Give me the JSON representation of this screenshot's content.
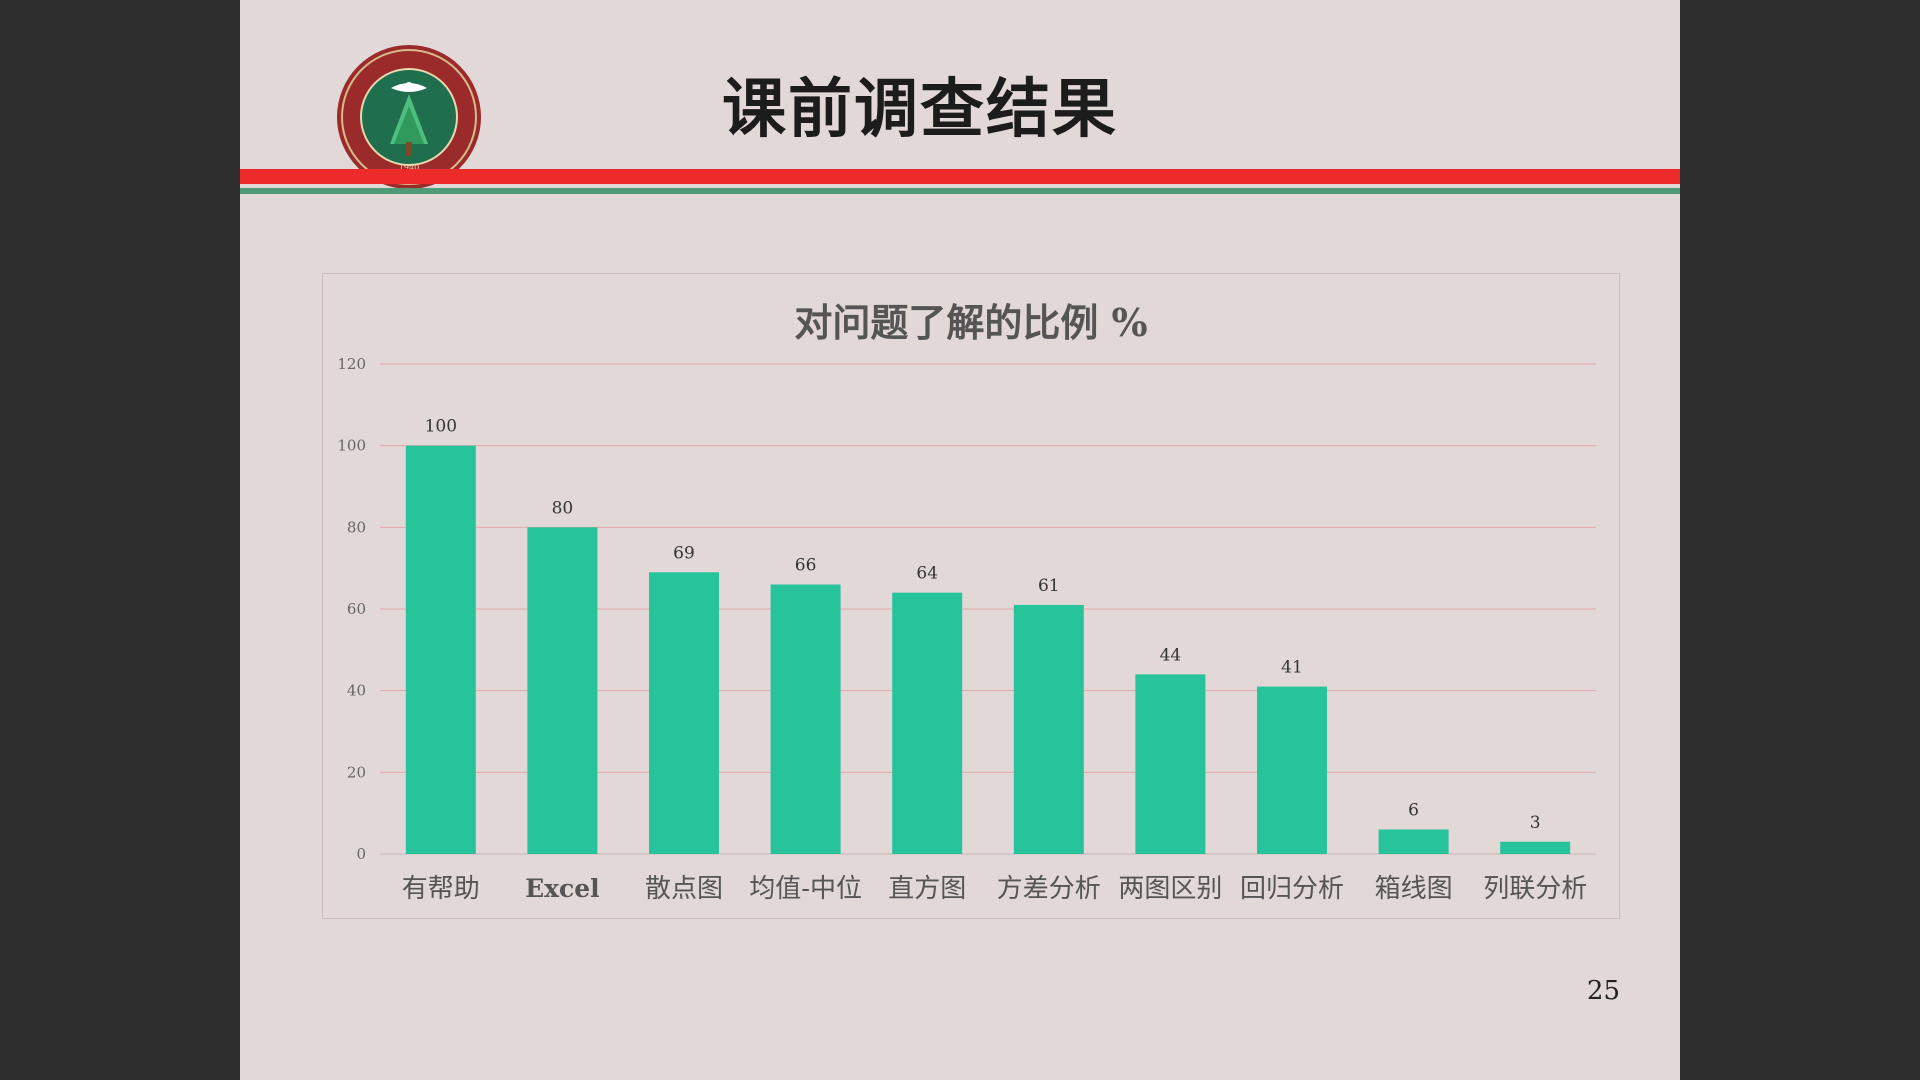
{
  "slide": {
    "title": "课前调查结果",
    "page_number": "25",
    "seal": {
      "icon": "university-seal-icon",
      "text": "BEIJING INSTITUTE OF TECHNOLOGY",
      "chinese": "北京理工大学",
      "year": "1940"
    },
    "colors": {
      "background": "#e2d8d8",
      "red_band": "#ee2b2b",
      "green_band": "#4f9a77"
    }
  },
  "chart_data": {
    "type": "bar",
    "title": "对问题了解的比例  %",
    "categories": [
      "有帮助",
      "Excel",
      "散点图",
      "均值-中位",
      "直方图",
      "方差分析",
      "两图区别",
      "回归分析",
      "箱线图",
      "列联分析"
    ],
    "values": [
      100,
      80,
      69,
      66,
      64,
      61,
      44,
      41,
      6,
      3
    ],
    "ylim": [
      0,
      120
    ],
    "yticks": [
      0,
      20,
      40,
      60,
      80,
      100,
      120
    ],
    "grid": true,
    "legend": "none",
    "bar_color": "#27c39a",
    "grid_color": "#e3a8a8"
  }
}
